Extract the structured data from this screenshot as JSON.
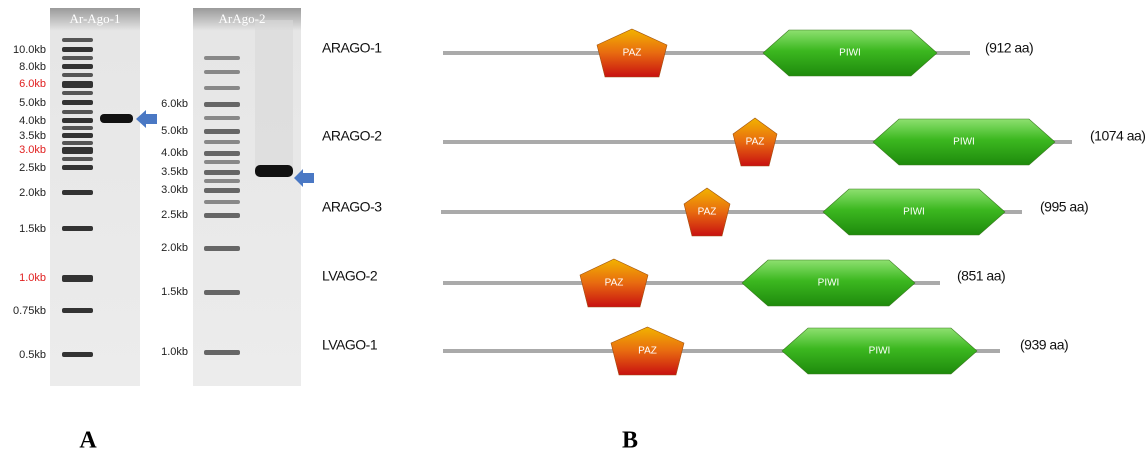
{
  "panel_a": {
    "gel_1": {
      "title": "Ar-Ago-1",
      "ladder": [
        "10.0kb",
        "8.0kb",
        "6.0kb",
        "5.0kb",
        "4.0kb",
        "3.5kb",
        "3.0kb",
        "2.5kb",
        "2.0kb",
        "1.5kb",
        "1.0kb",
        "0.75kb",
        "0.5kb"
      ]
    },
    "gel_2": {
      "title": "ArAgo-2",
      "ladder": [
        "6.0kb",
        "5.0kb",
        "4.0kb",
        "3.5kb",
        "3.0kb",
        "2.5kb",
        "2.0kb",
        "1.5kb",
        "1.0kb"
      ]
    }
  },
  "panel_b": {
    "proteins": [
      {
        "name": "ARAGO-1",
        "length": "(912 aa)",
        "domains": [
          "PAZ",
          "PIWI"
        ]
      },
      {
        "name": "ARAGO-2",
        "length": "(1074 aa)",
        "domains": [
          "PAZ",
          "PIWI"
        ]
      },
      {
        "name": "ARAGO-3",
        "length": "(995 aa)",
        "domains": [
          "PAZ",
          "PIWI"
        ]
      },
      {
        "name": "LVAGO-2",
        "length": "(851 aa)",
        "domains": [
          "PAZ",
          "PIWI"
        ]
      },
      {
        "name": "LVAGO-1",
        "length": "(939 aa)",
        "domains": [
          "PAZ",
          "PIWI"
        ]
      }
    ]
  },
  "panel_labels": [
    "A",
    "B"
  ]
}
